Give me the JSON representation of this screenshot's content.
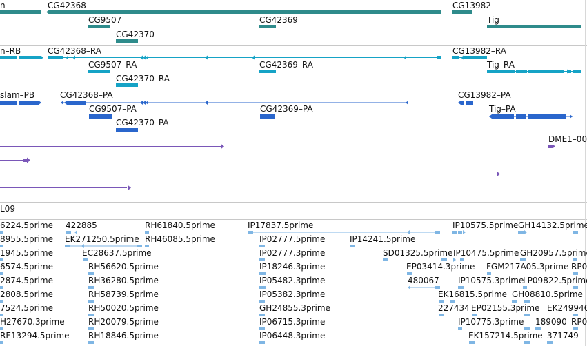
{
  "colors": {
    "gene": "#2e8b8b",
    "transcript": "#16a3c6",
    "protein": "#2a66cc",
    "alignment": "#7a57b8",
    "est": "#7fb6e4",
    "separator": "#c8c8c8"
  },
  "tracks": {
    "genes": {
      "items": [
        {
          "label": "n"
        },
        {
          "label": "CG42368"
        },
        {
          "label": "CG13982"
        },
        {
          "label": "CG9507"
        },
        {
          "label": "CG42369"
        },
        {
          "label": "Tig"
        },
        {
          "label": "CG42370"
        }
      ]
    },
    "transcripts": {
      "items": [
        {
          "label": "n–RB"
        },
        {
          "label": "CG42368–RA"
        },
        {
          "label": "CG13982–RA"
        },
        {
          "label": "CG9507–RA"
        },
        {
          "label": "CG42369–RA"
        },
        {
          "label": "Tig–RA"
        },
        {
          "label": "CG42370–RA"
        }
      ]
    },
    "proteins": {
      "items": [
        {
          "label": "slam–PB"
        },
        {
          "label": "CG42368–PA"
        },
        {
          "label": "CG13982–PA"
        },
        {
          "label": "CG9507–PA"
        },
        {
          "label": "CG42369–PA"
        },
        {
          "label": "Tig–PA"
        },
        {
          "label": "CG42370–PA"
        }
      ]
    },
    "alignments": {
      "items": [
        {
          "label": "DME1–00"
        }
      ]
    },
    "region": {
      "label": "L09"
    },
    "ests": {
      "items": [
        {
          "label": "6224.5prime"
        },
        {
          "label": "422885"
        },
        {
          "label": "RH61840.5prime"
        },
        {
          "label": "IP17837.5prime"
        },
        {
          "label": "IP10575.5prime"
        },
        {
          "label": "GH14132.5prime"
        },
        {
          "label": "8955.5prime"
        },
        {
          "label": "EK271250.5prime"
        },
        {
          "label": "RH46085.5prime"
        },
        {
          "label": "IP02777.5prime"
        },
        {
          "label": "IP14241.5prime"
        },
        {
          "label": "1945.5prime"
        },
        {
          "label": "EC28637.5prime"
        },
        {
          "label": "IP02777.3prime"
        },
        {
          "label": "SD01325.5prime"
        },
        {
          "label": "IP10475.5prime"
        },
        {
          "label": "GH20957.5prime"
        },
        {
          "label": "6574.5prime"
        },
        {
          "label": "RH56620.5prime"
        },
        {
          "label": "IP18246.3prime"
        },
        {
          "label": "EP03414.3prime"
        },
        {
          "label": "FGM217A05.3prime"
        },
        {
          "label": "RP0"
        },
        {
          "label": "2874.5prime"
        },
        {
          "label": "RH36280.5prime"
        },
        {
          "label": "IP05482.3prime"
        },
        {
          "label": "480067"
        },
        {
          "label": "IP10575.3prime"
        },
        {
          "label": "LP09822.5prime"
        },
        {
          "label": "2808.5prime"
        },
        {
          "label": "RH58739.5prime"
        },
        {
          "label": "IP05382.3prime"
        },
        {
          "label": "EK16815.5prime"
        },
        {
          "label": "GH08810.5prime"
        },
        {
          "label": "7524.5prime"
        },
        {
          "label": "RH50020.5prime"
        },
        {
          "label": "GH24855.3prime"
        },
        {
          "label": "227434"
        },
        {
          "label": "EP02155.3prime"
        },
        {
          "label": "EK249946"
        },
        {
          "label": "H27670.3prime"
        },
        {
          "label": "RH20079.5prime"
        },
        {
          "label": "IP06715.3prime"
        },
        {
          "label": "IP10775.3prime"
        },
        {
          "label": "189090"
        },
        {
          "label": "RP0"
        },
        {
          "label": "RE13294.5prime"
        },
        {
          "label": "RH18846.5prime"
        },
        {
          "label": "IP06448.3prime"
        },
        {
          "label": "EK157214.5prime"
        },
        {
          "label": "371749"
        }
      ]
    }
  }
}
